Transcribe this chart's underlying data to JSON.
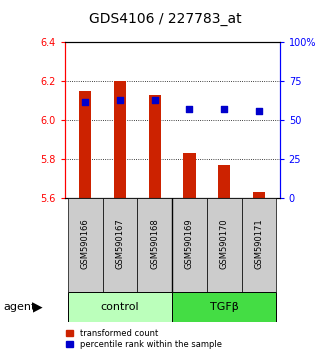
{
  "title": "GDS4106 / 227783_at",
  "samples": [
    "GSM590166",
    "GSM590167",
    "GSM590168",
    "GSM590169",
    "GSM590170",
    "GSM590171"
  ],
  "bar_values": [
    6.15,
    6.2,
    6.13,
    5.83,
    5.77,
    5.63
  ],
  "bar_bottom": 5.6,
  "percentile_values": [
    62,
    63,
    63,
    57,
    57,
    56
  ],
  "percentile_scale_min": 0,
  "percentile_scale_max": 100,
  "ylim_left": [
    5.6,
    6.4
  ],
  "yticks_left": [
    5.6,
    5.8,
    6.0,
    6.2,
    6.4
  ],
  "yticks_right": [
    0,
    25,
    50,
    75,
    100
  ],
  "ytick_labels_right": [
    "0",
    "25",
    "50",
    "75",
    "100%"
  ],
  "bar_color": "#cc2200",
  "dot_color": "#0000cc",
  "groups": [
    {
      "label": "control",
      "indices": [
        0,
        1,
        2
      ],
      "color": "#bbffbb"
    },
    {
      "label": "TGFβ",
      "indices": [
        3,
        4,
        5
      ],
      "color": "#44dd44"
    }
  ],
  "group_label": "agent",
  "legend_items": [
    {
      "label": "transformed count",
      "color": "#cc2200"
    },
    {
      "label": "percentile rank within the sample",
      "color": "#0000cc"
    }
  ],
  "bar_width": 0.35,
  "tick_area_color": "#cccccc"
}
